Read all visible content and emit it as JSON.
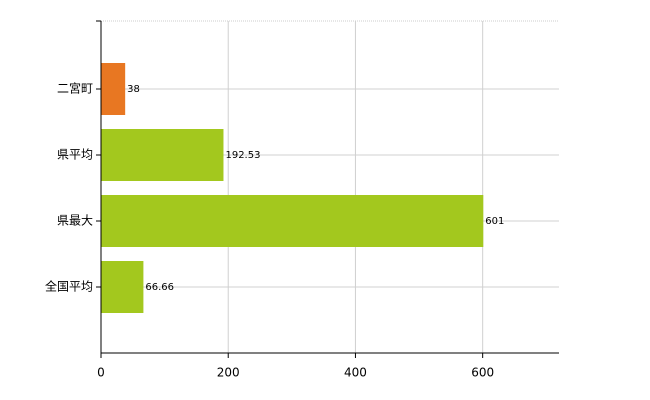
{
  "chart_data": {
    "type": "bar",
    "orientation": "horizontal",
    "categories": [
      "二宮町",
      "県平均",
      "県最大",
      "全国平均"
    ],
    "values": [
      38,
      192.53,
      601,
      66.66
    ],
    "colors": [
      "#e87722",
      "#a3c81e",
      "#a3c81e",
      "#a3c81e"
    ],
    "xlim": [
      0,
      720
    ],
    "xticks": [
      0,
      200,
      400,
      600
    ],
    "grid": true
  }
}
